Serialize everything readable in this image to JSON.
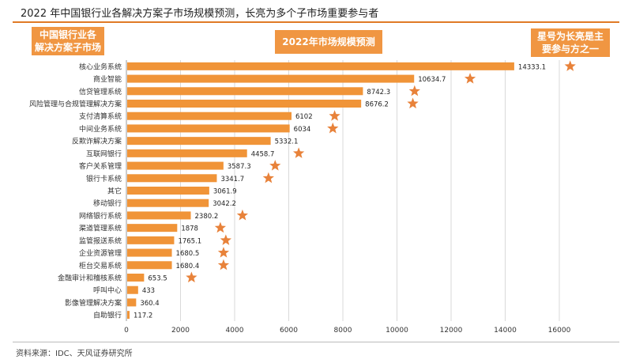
{
  "title": "2022 年中国银行业各解决方案子市场规模预测，长亮为多个子市场重要参与者",
  "source": "资料来源：IDC、天风证券研究所",
  "annotations": {
    "left_box": [
      "中国银行业各",
      "解决方案子市场"
    ],
    "mid_box": "2022年市场规模预测",
    "right_box": [
      "星号为长亮是主",
      "要参与方之一"
    ]
  },
  "colors": {
    "bar": "#f09438",
    "star": "#e8823a",
    "box": "#f09642",
    "rule": "#e07a26"
  },
  "chart_data": {
    "type": "bar",
    "orientation": "horizontal",
    "categories": [
      "核心业务系统",
      "商业智能",
      "信贷管理系统",
      "风险管理与合规管理解决方案",
      "支付清算系统",
      "中间业务系统",
      "反欺诈解决方案",
      "互联网银行",
      "客户关系管理",
      "银行卡系统",
      "其它",
      "移动银行",
      "网络银行系统",
      "渠道管理系统",
      "监管报送系统",
      "企业资源管理",
      "柜台交易系统",
      "金融审计和稽核系统",
      "呼叫中心",
      "影像管理解决方案",
      "自助银行"
    ],
    "values": [
      14333.1,
      10634.7,
      8742.3,
      8676.2,
      6102,
      6034,
      5332.1,
      4458.7,
      3587.3,
      3341.7,
      3061.9,
      3042.2,
      2380.2,
      1878,
      1765.1,
      1680.5,
      1680.4,
      653.5,
      433,
      360.4,
      117.2
    ],
    "value_labels": [
      "14333.1",
      "10634.7",
      "8742.3",
      "8676.2",
      "6102",
      "6034",
      "5332.1",
      "4458.7",
      "3587.3",
      "3341.7",
      "3061.9",
      "3042.2",
      "2380.2",
      "1878",
      "1765.1",
      "1680.5",
      "1680.4",
      "653.5",
      "433",
      "360.4",
      "117.2"
    ],
    "star": [
      true,
      true,
      true,
      true,
      true,
      true,
      false,
      true,
      true,
      true,
      false,
      false,
      true,
      true,
      true,
      true,
      true,
      true,
      false,
      false,
      false
    ],
    "xlim": [
      0,
      16000
    ],
    "xticks": [
      "0",
      "2000",
      "4000",
      "6000",
      "8000",
      "10000",
      "12000",
      "14000",
      "16000"
    ],
    "xtick_values": [
      0,
      2000,
      4000,
      6000,
      8000,
      10000,
      12000,
      14000,
      16000
    ],
    "grid": true
  }
}
